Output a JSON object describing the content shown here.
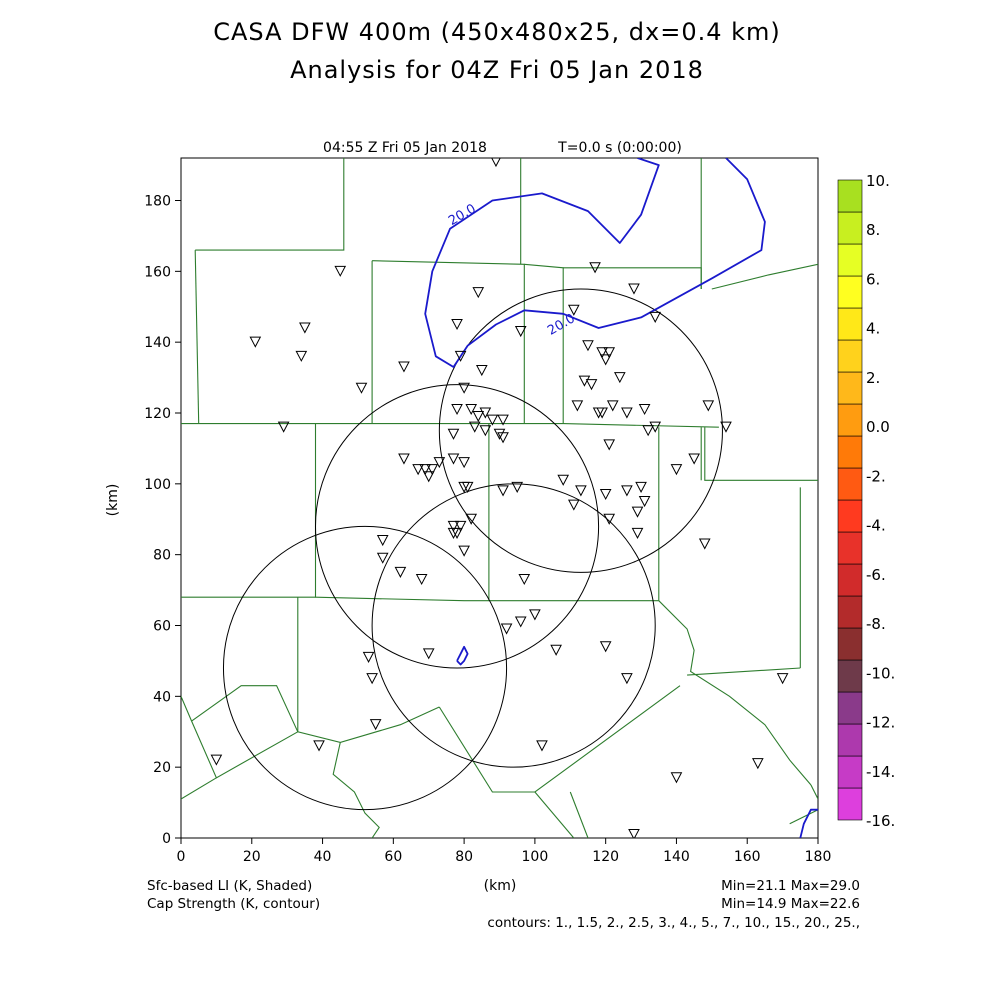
{
  "title_line1": "CASA DFW 400m (450x480x25, dx=0.4 km)",
  "title_line2": "Analysis for 04Z Fri 05 Jan 2018",
  "panel_header": {
    "valid_time": "04:55 Z Fri 05 Jan 2018",
    "model_time": "T=0.0 s (0:00:00)"
  },
  "footer": {
    "shaded_label": "Sfc-based LI (K, Shaded)",
    "contour_label": "Cap Strength (K, contour)",
    "shaded_range": "Min=21.1 Max=29.0",
    "contour_range": "Min=14.9 Max=22.6",
    "contour_levels": "contours: 1., 1.5, 2., 2.5, 3., 4., 5., 7., 10., 15., 20., 25.,"
  },
  "chart_data": {
    "type": "contour-map",
    "xlabel": "(km)",
    "ylabel": "(km)",
    "xlim": [
      0,
      180
    ],
    "ylim": [
      0,
      192
    ],
    "x_ticks": [
      0,
      20,
      40,
      60,
      80,
      100,
      120,
      140,
      160,
      180
    ],
    "y_ticks": [
      0,
      20,
      40,
      60,
      80,
      100,
      120,
      140,
      160,
      180
    ],
    "grid": false,
    "colorbar": {
      "placement": "right",
      "colors": [
        "#dd3fdd",
        "#c63bc6",
        "#ad39ad",
        "#8a3a8a",
        "#6e3a4a",
        "#8a2f2f",
        "#b32b2b",
        "#d12b2b",
        "#e8322a",
        "#ff3a1f",
        "#ff5a12",
        "#ff7a08",
        "#ff9c10",
        "#ffb81a",
        "#ffd21c",
        "#ffe818",
        "#ffff20",
        "#e6ff24",
        "#c8ef20",
        "#a8e020"
      ],
      "labels": [
        "10.",
        "8.",
        "6.",
        "4.",
        "2.",
        "0.0",
        "-2.",
        "-4.",
        "-6.",
        "-8.",
        "-10.",
        "-12.",
        "-14.",
        "-16."
      ]
    },
    "contour_color": "#1a1acc",
    "contour_labels": [
      {
        "text": "20.0",
        "x": 80,
        "y": 175
      },
      {
        "text": "20.0",
        "x": 108,
        "y": 144
      }
    ],
    "contour_lines": [
      [
        [
          129,
          192
        ],
        [
          135,
          190
        ],
        [
          130,
          176
        ],
        [
          124,
          168
        ],
        [
          115,
          177
        ],
        [
          102,
          182
        ],
        [
          88,
          180
        ],
        [
          76,
          172
        ],
        [
          71,
          160
        ],
        [
          69,
          148
        ],
        [
          72,
          136
        ],
        [
          77,
          133
        ],
        [
          81,
          139
        ],
        [
          89,
          145
        ],
        [
          97,
          149
        ],
        [
          108,
          148
        ],
        [
          118,
          144
        ],
        [
          130,
          147
        ],
        [
          150,
          158
        ],
        [
          164,
          166
        ],
        [
          165,
          174
        ],
        [
          160,
          186
        ],
        [
          154,
          192
        ]
      ],
      [
        [
          78,
          50
        ],
        [
          79,
          52
        ],
        [
          80,
          54
        ],
        [
          81,
          52
        ],
        [
          80,
          50
        ],
        [
          79,
          49
        ],
        [
          78,
          50
        ]
      ],
      [
        [
          175,
          0
        ],
        [
          176,
          4
        ],
        [
          178,
          8
        ],
        [
          180,
          8
        ]
      ]
    ],
    "radar_rings": [
      {
        "cx": 52,
        "cy": 48,
        "r": 40
      },
      {
        "cx": 78,
        "cy": 88,
        "r": 40
      },
      {
        "cx": 113,
        "cy": 115,
        "r": 40
      },
      {
        "cx": 94,
        "cy": 60,
        "r": 40
      }
    ],
    "station_markers": [
      [
        89,
        191
      ],
      [
        45,
        160
      ],
      [
        21,
        140
      ],
      [
        35,
        144
      ],
      [
        34,
        136
      ],
      [
        51,
        127
      ],
      [
        29,
        116
      ],
      [
        84,
        154
      ],
      [
        78,
        145
      ],
      [
        79,
        136
      ],
      [
        80,
        127
      ],
      [
        85,
        132
      ],
      [
        96,
        143
      ],
      [
        111,
        149
      ],
      [
        117,
        161
      ],
      [
        128,
        155
      ],
      [
        134,
        147
      ],
      [
        115,
        139
      ],
      [
        119,
        137
      ],
      [
        121,
        137
      ],
      [
        120,
        135
      ],
      [
        114,
        129
      ],
      [
        116,
        128
      ],
      [
        124,
        130
      ],
      [
        112,
        122
      ],
      [
        118,
        120
      ],
      [
        122,
        122
      ],
      [
        119,
        120
      ],
      [
        126,
        120
      ],
      [
        131,
        121
      ],
      [
        78,
        121
      ],
      [
        82,
        121
      ],
      [
        84,
        119
      ],
      [
        86,
        120
      ],
      [
        88,
        118
      ],
      [
        91,
        118
      ],
      [
        83,
        116
      ],
      [
        86,
        115
      ],
      [
        90,
        114
      ],
      [
        91,
        113
      ],
      [
        77,
        114
      ],
      [
        121,
        111
      ],
      [
        132,
        115
      ],
      [
        134,
        116
      ],
      [
        149,
        122
      ],
      [
        154,
        116
      ],
      [
        63,
        133
      ],
      [
        63,
        107
      ],
      [
        67,
        104
      ],
      [
        69,
        104
      ],
      [
        71,
        104
      ],
      [
        73,
        106
      ],
      [
        77,
        107
      ],
      [
        80,
        106
      ],
      [
        70,
        102
      ],
      [
        80,
        99
      ],
      [
        81,
        99
      ],
      [
        91,
        98
      ],
      [
        95,
        99
      ],
      [
        108,
        101
      ],
      [
        113,
        98
      ],
      [
        120,
        97
      ],
      [
        126,
        98
      ],
      [
        130,
        99
      ],
      [
        140,
        104
      ],
      [
        145,
        107
      ],
      [
        77,
        88
      ],
      [
        79,
        88
      ],
      [
        82,
        90
      ],
      [
        78,
        86
      ],
      [
        77,
        86
      ],
      [
        80,
        81
      ],
      [
        57,
        84
      ],
      [
        57,
        79
      ],
      [
        62,
        75
      ],
      [
        68,
        73
      ],
      [
        97,
        73
      ],
      [
        111,
        94
      ],
      [
        121,
        90
      ],
      [
        129,
        92
      ],
      [
        131,
        95
      ],
      [
        129,
        86
      ],
      [
        148,
        83
      ],
      [
        100,
        63
      ],
      [
        96,
        61
      ],
      [
        92,
        59
      ],
      [
        70,
        52
      ],
      [
        106,
        53
      ],
      [
        120,
        54
      ],
      [
        126,
        45
      ],
      [
        53,
        51
      ],
      [
        54,
        45
      ],
      [
        55,
        32
      ],
      [
        39,
        26
      ],
      [
        102,
        26
      ],
      [
        140,
        17
      ],
      [
        163,
        21
      ],
      [
        170,
        45
      ],
      [
        10,
        22
      ],
      [
        128,
        1
      ]
    ],
    "county_boundaries": [
      [
        [
          0,
          117
        ],
        [
          38,
          117
        ],
        [
          38,
          68
        ],
        [
          0,
          68
        ]
      ],
      [
        [
          4,
          166
        ],
        [
          5,
          117
        ]
      ],
      [
        [
          46,
          192
        ],
        [
          46,
          166
        ],
        [
          4,
          166
        ]
      ],
      [
        [
          54,
          163
        ],
        [
          54,
          117
        ]
      ],
      [
        [
          54,
          163
        ],
        [
          97,
          162
        ],
        [
          97,
          117
        ]
      ],
      [
        [
          96,
          192
        ],
        [
          96,
          162
        ]
      ],
      [
        [
          97,
          162
        ],
        [
          108,
          161
        ],
        [
          108,
          117
        ]
      ],
      [
        [
          108,
          161
        ],
        [
          147,
          161
        ],
        [
          147,
          155
        ]
      ],
      [
        [
          147,
          192
        ],
        [
          147,
          155
        ]
      ],
      [
        [
          150,
          155
        ],
        [
          166,
          159
        ],
        [
          180,
          162
        ]
      ],
      [
        [
          38,
          117
        ],
        [
          78,
          117
        ],
        [
          108,
          117
        ],
        [
          152,
          116
        ]
      ],
      [
        [
          148,
          116
        ],
        [
          148,
          101
        ],
        [
          180,
          101
        ]
      ],
      [
        [
          147,
          116
        ],
        [
          147,
          101
        ]
      ],
      [
        [
          38,
          68
        ],
        [
          80,
          67
        ],
        [
          100,
          67
        ],
        [
          135,
          67
        ]
      ],
      [
        [
          87,
          117
        ],
        [
          87,
          67
        ]
      ],
      [
        [
          135,
          116
        ],
        [
          135,
          67
        ]
      ],
      [
        [
          175,
          99
        ],
        [
          175,
          48
        ]
      ],
      [
        [
          135,
          67
        ],
        [
          143,
          59
        ],
        [
          145,
          53
        ],
        [
          144,
          47
        ],
        [
          155,
          40
        ],
        [
          165,
          32
        ],
        [
          172,
          22
        ],
        [
          178,
          15
        ]
      ],
      [
        [
          143,
          46
        ],
        [
          175,
          48
        ]
      ],
      [
        [
          141,
          43
        ],
        [
          100,
          13
        ],
        [
          88,
          13
        ],
        [
          73,
          37
        ]
      ],
      [
        [
          73,
          37
        ],
        [
          62,
          32
        ],
        [
          45,
          27
        ],
        [
          33,
          30
        ],
        [
          27,
          43
        ],
        [
          17,
          43
        ],
        [
          3,
          33
        ]
      ],
      [
        [
          33,
          68
        ],
        [
          33,
          30
        ]
      ],
      [
        [
          0,
          40
        ],
        [
          3,
          33
        ],
        [
          10,
          17
        ],
        [
          33,
          30
        ]
      ],
      [
        [
          0,
          11
        ],
        [
          10,
          17
        ]
      ],
      [
        [
          45,
          27
        ],
        [
          43,
          18
        ],
        [
          49,
          13
        ],
        [
          52,
          7
        ],
        [
          56,
          3
        ],
        [
          54,
          0
        ]
      ],
      [
        [
          100,
          13
        ],
        [
          111,
          0
        ]
      ],
      [
        [
          110,
          13
        ],
        [
          115,
          0
        ]
      ],
      [
        [
          178,
          15
        ],
        [
          180,
          11
        ]
      ],
      [
        [
          172,
          4
        ],
        [
          180,
          8
        ]
      ]
    ]
  }
}
